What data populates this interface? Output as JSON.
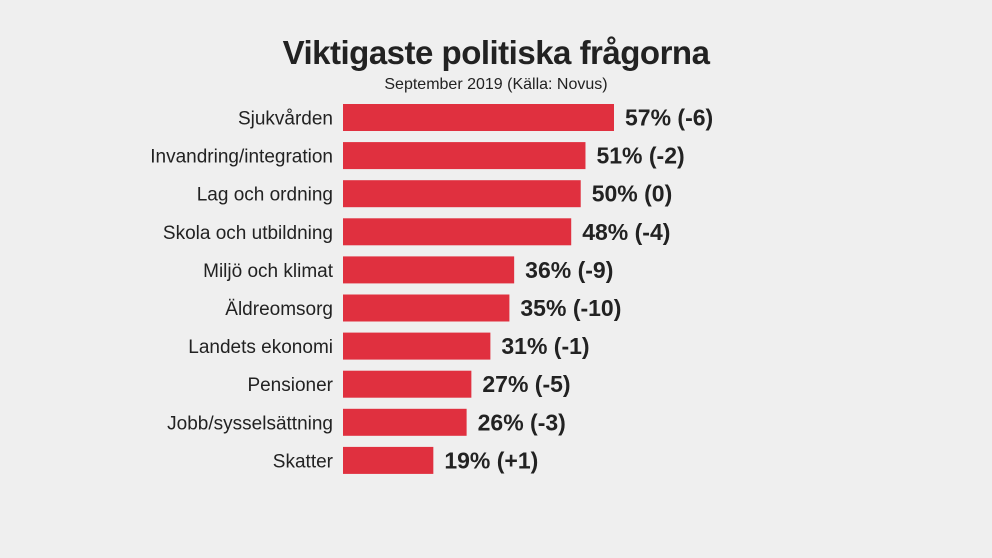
{
  "chart_data": {
    "type": "bar",
    "orientation": "horizontal",
    "title": "Viktigaste politiska frågorna",
    "subtitle": "September 2019 (Källa: Novus)",
    "categories": [
      "Sjukvården",
      "Invandring/integration",
      "Lag och ordning",
      "Skola och utbildning",
      "Miljö och klimat",
      "Äldreomsorg",
      "Landets ekonomi",
      "Pensioner",
      "Jobb/sysselsättning",
      "Skatter"
    ],
    "values": [
      57,
      51,
      50,
      48,
      36,
      35,
      31,
      27,
      26,
      19
    ],
    "value_labels": [
      "57% (-6)",
      "51% (-2)",
      "50% (0)",
      "48% (-4)",
      "36% (-9)",
      "35% (-10)",
      "31% (-1)",
      "27% (-5)",
      "26% (-3)",
      "19% (+1)"
    ],
    "unit": "%",
    "xlim": [
      0,
      57
    ],
    "grid": false,
    "bar_color": "#e0303f"
  }
}
